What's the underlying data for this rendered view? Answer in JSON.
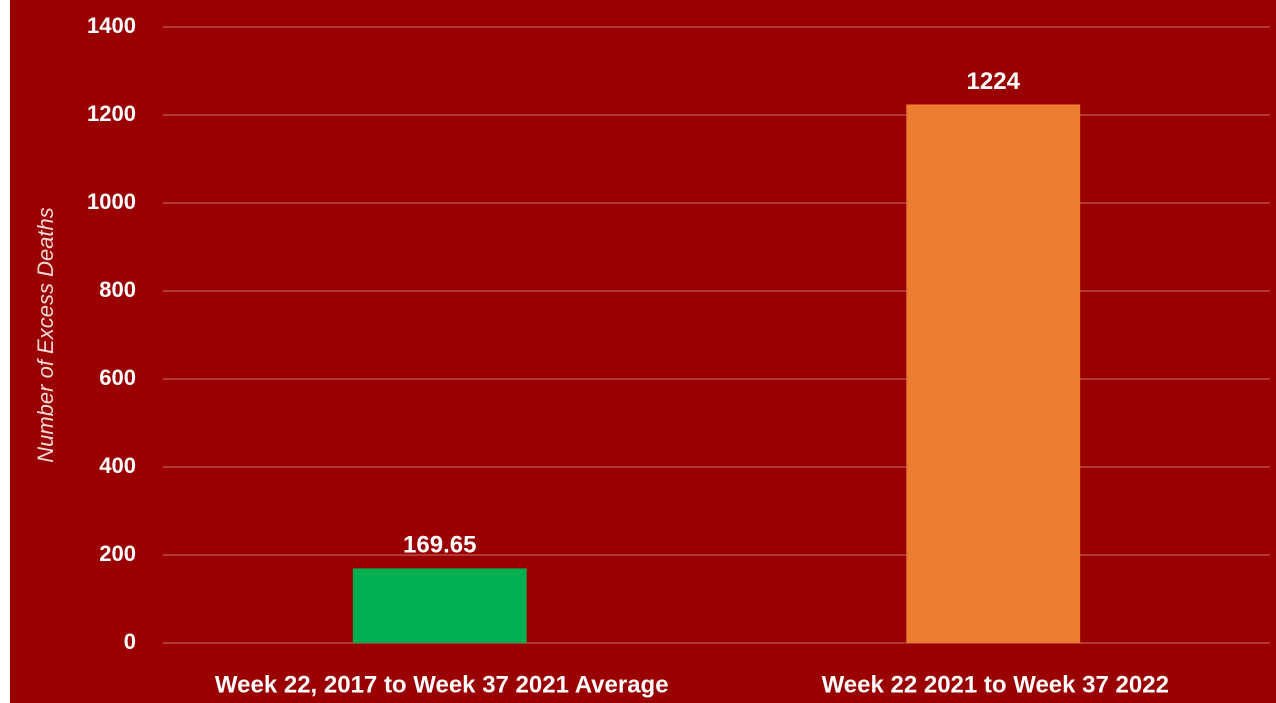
{
  "chart_data": {
    "type": "bar",
    "y_axis_label": "Number of Excess Deaths",
    "categories": [
      "Week 22, 2017 to Week 37 2021 Average",
      "Week 22 2021 to Week 37 2022"
    ],
    "values": [
      169.65,
      1224
    ],
    "colors": [
      "#00b050",
      "#ed7d31"
    ],
    "ylim": [
      0,
      1400
    ],
    "yticks": [
      0,
      200,
      400,
      600,
      800,
      1000,
      1200,
      1400
    ],
    "grid": true
  }
}
